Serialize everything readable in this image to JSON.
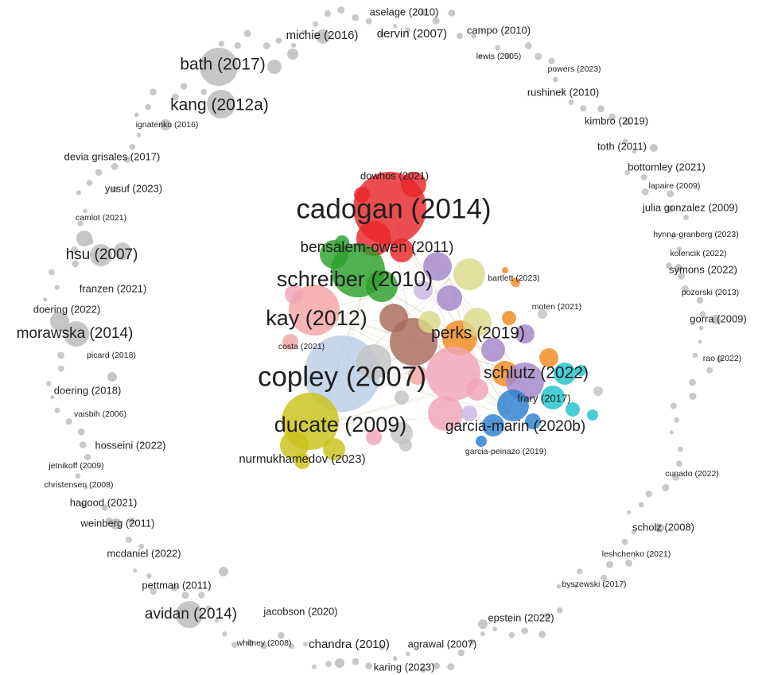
{
  "colors": {
    "red": "#e8262b",
    "green": "#2ca02c",
    "purple": "#a485c9",
    "yellow": "#c9c21a",
    "pink": "#f0a4b8",
    "blue": "#2a7fd0",
    "cyan": "#1fc3cc",
    "orange": "#f08a1e",
    "grey": "#c3c3c3",
    "lightblue": "#b9cde6",
    "brown": "#a86a5a",
    "khaki": "#d9d98a",
    "lavender": "#c8b7e3",
    "salmon": "#f4a3a3",
    "label": "#1f1f1f"
  },
  "labels": [
    {
      "text": "aselage (2010)",
      "weight": 1
    },
    {
      "text": "michie (2016)",
      "weight": 2
    },
    {
      "text": "dervin (2007)",
      "weight": 2
    },
    {
      "text": "campo (2010)",
      "weight": 1
    },
    {
      "text": "lewis (2005)",
      "weight": 0
    },
    {
      "text": "bath (2017)",
      "weight": 4
    },
    {
      "text": "powers (2023)",
      "weight": 0
    },
    {
      "text": "rushinek (2010)",
      "weight": 1
    },
    {
      "text": "kang (2012a)",
      "weight": 4
    },
    {
      "text": "ignatenko (2016)",
      "weight": 0
    },
    {
      "text": "kimbro (2019)",
      "weight": 1
    },
    {
      "text": "toth (2011)",
      "weight": 1
    },
    {
      "text": "devia grisales (2017)",
      "weight": 1
    },
    {
      "text": "bottomley (2021)",
      "weight": 1
    },
    {
      "text": "dowhos (2021)",
      "weight": 1
    },
    {
      "text": "lapaire (2009)",
      "weight": 0
    },
    {
      "text": "yusuf (2023)",
      "weight": 1
    },
    {
      "text": "cadogan (2014)",
      "weight": 7
    },
    {
      "text": "julia gonzalez (2009)",
      "weight": 1
    },
    {
      "text": "camlot (2021)",
      "weight": 0
    },
    {
      "text": "hynna-granberg (2023)",
      "weight": 0
    },
    {
      "text": "bensalem-owen (2011)",
      "weight": 3
    },
    {
      "text": "kolencik (2022)",
      "weight": 0
    },
    {
      "text": "hsu (2007)",
      "weight": 3
    },
    {
      "text": "symons (2022)",
      "weight": 1
    },
    {
      "text": "bartlett (2023)",
      "weight": 0
    },
    {
      "text": "schreiber (2010)",
      "weight": 6
    },
    {
      "text": "franzen (2021)",
      "weight": 1
    },
    {
      "text": "pozorski (2013)",
      "weight": 0
    },
    {
      "text": "moten (2021)",
      "weight": 0
    },
    {
      "text": "doering (2022)",
      "weight": 1
    },
    {
      "text": "kay (2012)",
      "weight": 6
    },
    {
      "text": "gorra (2009)",
      "weight": 1
    },
    {
      "text": "morawska (2014)",
      "weight": 3
    },
    {
      "text": "perks (2019)",
      "weight": 4
    },
    {
      "text": "costa (2021)",
      "weight": 0
    },
    {
      "text": "picard (2018)",
      "weight": 0
    },
    {
      "text": "rao (2022)",
      "weight": 0
    },
    {
      "text": "copley (2007)",
      "weight": 7
    },
    {
      "text": "schlutz (2022)",
      "weight": 4
    },
    {
      "text": "doering (2018)",
      "weight": 1
    },
    {
      "text": "frary (2017)",
      "weight": 1
    },
    {
      "text": "vaisbih (2006)",
      "weight": 0
    },
    {
      "text": "ducate (2009)",
      "weight": 6
    },
    {
      "text": "garcia-marin (2020b)",
      "weight": 3
    },
    {
      "text": "hosseini (2022)",
      "weight": 1
    },
    {
      "text": "garcia-peinazo (2019)",
      "weight": 0
    },
    {
      "text": "jetnikoff (2009)",
      "weight": 0
    },
    {
      "text": "nurmukhamedov (2023)",
      "weight": 2
    },
    {
      "text": "cunado (2022)",
      "weight": 0
    },
    {
      "text": "christensen (2008)",
      "weight": 0
    },
    {
      "text": "hagood (2021)",
      "weight": 1
    },
    {
      "text": "weinberg (2011)",
      "weight": 1
    },
    {
      "text": "scholz (2008)",
      "weight": 1
    },
    {
      "text": "mcdaniel (2022)",
      "weight": 1
    },
    {
      "text": "leshchenko (2021)",
      "weight": 0
    },
    {
      "text": "pettman (2011)",
      "weight": 1
    },
    {
      "text": "byszewski (2017)",
      "weight": 0
    },
    {
      "text": "avidan (2014)",
      "weight": 3
    },
    {
      "text": "jacobson (2020)",
      "weight": 1
    },
    {
      "text": "epstein (2022)",
      "weight": 1
    },
    {
      "text": "whitney (2008)",
      "weight": 0
    },
    {
      "text": "chandra (2010)",
      "weight": 2
    },
    {
      "text": "agrawal (2007)",
      "weight": 1
    },
    {
      "text": "karing (2023)",
      "weight": 1
    }
  ]
}
